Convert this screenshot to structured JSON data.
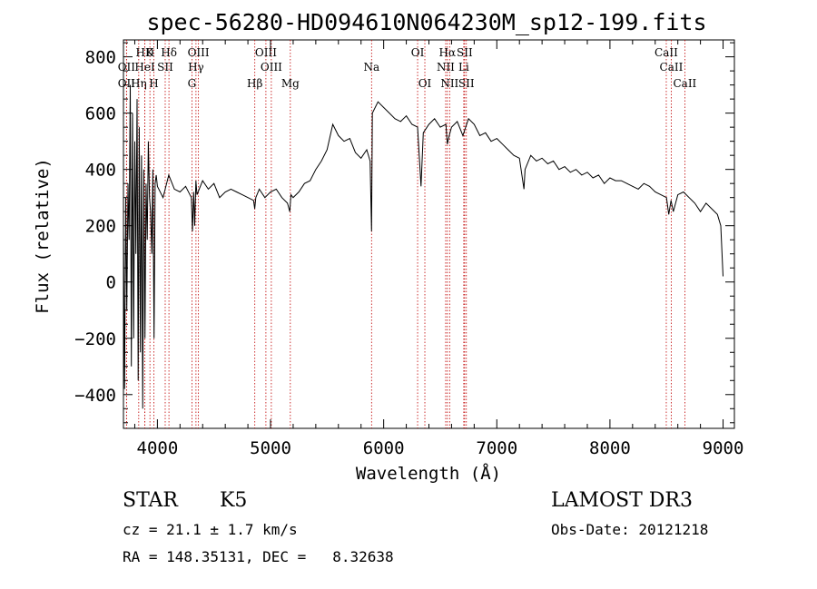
{
  "chart_data": {
    "type": "line",
    "title": "spec-56280-HD094610N064230M_sp12-199.fits",
    "xlabel": "Wavelength (Å)",
    "ylabel": "Flux (relative)",
    "xlim": [
      3700,
      9100
    ],
    "ylim": [
      -520,
      860
    ],
    "x_ticks": [
      4000,
      5000,
      6000,
      7000,
      8000,
      9000
    ],
    "y_ticks": [
      -400,
      -200,
      0,
      200,
      400,
      600,
      800
    ],
    "grid": false,
    "line_color": "#000000",
    "marker_color": "#c00000",
    "series": [
      {
        "x": [
          3700,
          3710,
          3720,
          3730,
          3740,
          3750,
          3760,
          3770,
          3780,
          3790,
          3800,
          3810,
          3820,
          3830,
          3840,
          3850,
          3860,
          3870,
          3880,
          3890,
          3900,
          3910,
          3920,
          3930,
          3940,
          3950,
          3960,
          3970,
          3980,
          3990,
          4000,
          4050,
          4100,
          4150,
          4200,
          4250,
          4300,
          4310,
          4320,
          4330,
          4340,
          4350,
          4400,
          4450,
          4500,
          4550,
          4600,
          4650,
          4700,
          4750,
          4800,
          4850,
          4860,
          4870,
          4900,
          4950,
          5000,
          5050,
          5100,
          5150,
          5170,
          5180,
          5200,
          5250,
          5300,
          5350,
          5400,
          5450,
          5500,
          5550,
          5600,
          5650,
          5700,
          5750,
          5800,
          5850,
          5880,
          5893,
          5900,
          5950,
          6000,
          6050,
          6100,
          6150,
          6200,
          6250,
          6300,
          6330,
          6350,
          6400,
          6450,
          6500,
          6550,
          6563,
          6580,
          6600,
          6650,
          6700,
          6750,
          6800,
          6850,
          6900,
          6950,
          7000,
          7050,
          7100,
          7150,
          7200,
          7240,
          7250,
          7300,
          7350,
          7400,
          7450,
          7500,
          7550,
          7600,
          7650,
          7700,
          7750,
          7800,
          7850,
          7900,
          7950,
          8000,
          8050,
          8100,
          8150,
          8200,
          8250,
          8300,
          8350,
          8400,
          8450,
          8500,
          8520,
          8540,
          8560,
          8600,
          8650,
          8700,
          8750,
          8800,
          8850,
          8900,
          8950,
          8980,
          9000
        ],
        "y": [
          200,
          -380,
          300,
          -100,
          350,
          150,
          700,
          -300,
          600,
          -200,
          500,
          100,
          650,
          -350,
          550,
          -250,
          450,
          -450,
          400,
          -200,
          350,
          150,
          500,
          300,
          250,
          100,
          400,
          -200,
          350,
          380,
          340,
          300,
          380,
          330,
          320,
          340,
          300,
          180,
          320,
          200,
          360,
          310,
          360,
          330,
          350,
          300,
          320,
          330,
          320,
          310,
          300,
          290,
          260,
          300,
          330,
          300,
          320,
          330,
          300,
          280,
          250,
          310,
          300,
          320,
          350,
          360,
          400,
          430,
          470,
          560,
          520,
          500,
          510,
          460,
          440,
          470,
          430,
          180,
          600,
          640,
          620,
          600,
          580,
          570,
          590,
          560,
          550,
          340,
          530,
          560,
          580,
          550,
          560,
          490,
          520,
          550,
          570,
          520,
          580,
          560,
          520,
          530,
          500,
          510,
          490,
          470,
          450,
          440,
          330,
          400,
          450,
          430,
          440,
          420,
          430,
          400,
          410,
          390,
          400,
          380,
          390,
          370,
          380,
          350,
          370,
          360,
          360,
          350,
          340,
          330,
          350,
          340,
          320,
          310,
          300,
          240,
          290,
          250,
          310,
          320,
          300,
          280,
          250,
          280,
          260,
          240,
          200,
          20
        ]
      }
    ],
    "lines": [
      {
        "name": "HD",
        "x": 3889,
        "label": "HD"
      },
      {
        "name": "K",
        "x": 3934,
        "label": "K"
      },
      {
        "name": "Hδ",
        "x": 4102,
        "label": "Hδ"
      },
      {
        "name": "OII",
        "x": 3727,
        "label": "OII"
      },
      {
        "name": "HeI",
        "x": 3889,
        "label": "HeI"
      },
      {
        "name": "SII",
        "x": 4069,
        "label": "SII"
      },
      {
        "name": "OII-b",
        "x": 3727,
        "label": "OII"
      },
      {
        "name": "Hη",
        "x": 3835,
        "label": "Hη"
      },
      {
        "name": "H",
        "x": 3969,
        "label": "H"
      },
      {
        "name": "OIII-a",
        "x": 4363,
        "label": "OIII"
      },
      {
        "name": "Hγ",
        "x": 4341,
        "label": "Hγ"
      },
      {
        "name": "G",
        "x": 4305,
        "label": "G"
      },
      {
        "name": "OIII-b",
        "x": 4959,
        "label": "OIII"
      },
      {
        "name": "OIII-c",
        "x": 5007,
        "label": "OIII"
      },
      {
        "name": "Hβ",
        "x": 4861,
        "label": "Hβ"
      },
      {
        "name": "Mg",
        "x": 5175,
        "label": "Mg"
      },
      {
        "name": "Na",
        "x": 5893,
        "label": "Na"
      },
      {
        "name": "OI-a",
        "x": 6300,
        "label": "OI"
      },
      {
        "name": "OI-b",
        "x": 6364,
        "label": "OI"
      },
      {
        "name": "Hα",
        "x": 6563,
        "label": "Hα"
      },
      {
        "name": "NII-a",
        "x": 6548,
        "label": "NII"
      },
      {
        "name": "NII-b",
        "x": 6583,
        "label": "NII"
      },
      {
        "name": "SII-a",
        "x": 6716,
        "label": "SII"
      },
      {
        "name": "Li",
        "x": 6708,
        "label": "Li"
      },
      {
        "name": "SII-b",
        "x": 6731,
        "label": "SII"
      },
      {
        "name": "CaII-a",
        "x": 8498,
        "label": "CaII"
      },
      {
        "name": "CaII-b",
        "x": 8542,
        "label": "CaII"
      },
      {
        "name": "CaII-c",
        "x": 8662,
        "label": "CaII"
      }
    ]
  },
  "info": {
    "class": "STAR",
    "subclass": "K5",
    "survey": "LAMOST DR3",
    "cz": "cz = 21.1 ± 1.7 km/s",
    "obs_date": "Obs-Date: 20121218",
    "coords": "RA = 148.35131, DEC =   8.32638"
  }
}
